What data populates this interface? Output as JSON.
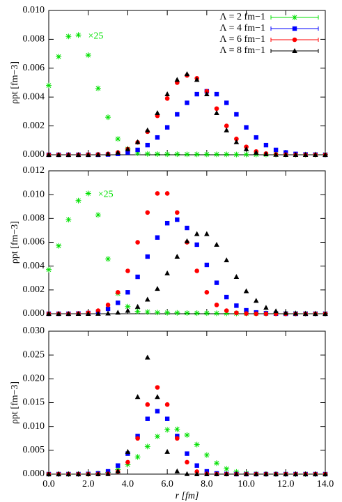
{
  "chart_data": [
    {
      "type": "scatter",
      "x": [
        0,
        0.5,
        1,
        1.5,
        2,
        2.5,
        3,
        3.5,
        4,
        4.5,
        5,
        5.5,
        6,
        6.5,
        7,
        7.5,
        8,
        8.5,
        9,
        9.5,
        10,
        10.5,
        11,
        11.5,
        12,
        12.5,
        13,
        13.5,
        14
      ],
      "ylabel": "ρpt [fm−3]",
      "ylim": [
        0,
        0.01
      ],
      "yticks": [
        {
          "value": 0,
          "label": "0.000"
        },
        {
          "value": 0.002,
          "label": "0.002"
        },
        {
          "value": 0.004,
          "label": "0.004"
        },
        {
          "value": 0.006,
          "label": "0.006"
        },
        {
          "value": 0.008,
          "label": "0.008"
        },
        {
          "value": 0.01,
          "label": "0.010"
        }
      ],
      "legend": "upper right",
      "annotation": "×25",
      "series": [
        {
          "name": "Λ = 2 fm−1",
          "color": "#00e000",
          "marker": "asterisk",
          "values": [
            0.0048,
            0.0068,
            0.0082,
            0.0083,
            0.0069,
            0.0046,
            0.0026,
            0.0011,
            0.0004,
            0.00012,
            6e-05,
            5e-05,
            4e-05,
            4e-05,
            3e-05,
            3e-05,
            3e-05,
            3e-05,
            3e-05,
            2e-05,
            2e-05,
            2e-05,
            2e-05,
            2e-05,
            1e-05,
            1e-05,
            1e-05,
            1e-05,
            1e-05
          ]
        },
        {
          "name": "Λ = 4 fm−1",
          "color": "#0000ff",
          "marker": "square",
          "values": [
            0,
            0,
            0,
            0,
            0,
            0,
            2e-05,
            6e-05,
            0.00016,
            0.00034,
            0.00067,
            0.0012,
            0.0019,
            0.0028,
            0.0036,
            0.0042,
            0.0044,
            0.0042,
            0.0036,
            0.0028,
            0.0019,
            0.0012,
            0.00067,
            0.00034,
            0.00016,
            6e-05,
            2e-05,
            1e-05,
            0
          ]
        },
        {
          "name": "Λ = 6 fm−1",
          "color": "#ff0000",
          "marker": "circle",
          "values": [
            0,
            0,
            0,
            0,
            1e-05,
            2e-05,
            5.5e-05,
            0.00016,
            0.00039,
            0.00086,
            0.0016,
            0.0027,
            0.0039,
            0.005,
            0.0055,
            0.0053,
            0.0044,
            0.0032,
            0.002,
            0.0011,
            0.00055,
            0.00023,
            8.5e-05,
            3e-05,
            1e-05,
            0,
            0,
            0,
            0
          ]
        },
        {
          "name": "Λ = 8 fm−1",
          "color": "#000000",
          "marker": "triangle",
          "values": [
            0,
            0,
            0,
            0,
            0,
            1e-05,
            5e-05,
            0.00015,
            0.00039,
            0.00088,
            0.0017,
            0.0029,
            0.0042,
            0.0052,
            0.0056,
            0.0052,
            0.0042,
            0.0029,
            0.0017,
            0.00088,
            0.00039,
            0.00015,
            5e-05,
            1e-05,
            0,
            0,
            0,
            0,
            0
          ]
        }
      ]
    },
    {
      "type": "scatter",
      "x": [
        0,
        0.5,
        1,
        1.5,
        2,
        2.5,
        3,
        3.5,
        4,
        4.5,
        5,
        5.5,
        6,
        6.5,
        7,
        7.5,
        8,
        8.5,
        9,
        9.5,
        10,
        10.5,
        11,
        11.5,
        12,
        12.5,
        13,
        13.5,
        14
      ],
      "ylabel": "ρpt [fm−3]",
      "ylim": [
        0,
        0.012
      ],
      "yticks": [
        {
          "value": 0,
          "label": "0.000"
        },
        {
          "value": 0.002,
          "label": "0.002"
        },
        {
          "value": 0.004,
          "label": "0.004"
        },
        {
          "value": 0.006,
          "label": "0.006"
        },
        {
          "value": 0.008,
          "label": "0.008"
        },
        {
          "value": 0.01,
          "label": "0.010"
        },
        {
          "value": 0.012,
          "label": "0.012"
        }
      ],
      "annotation": "×25",
      "series": [
        {
          "color": "#00e000",
          "marker": "asterisk",
          "values": [
            0.0037,
            0.0057,
            0.0079,
            0.0095,
            0.0101,
            0.0083,
            0.0046,
            0.0017,
            0.0006,
            0.0002,
            0.00015,
            0.0001,
            8e-05,
            7e-05,
            6e-05,
            5e-05,
            5e-05,
            4e-05,
            4e-05,
            3e-05,
            3e-05,
            3e-05,
            2e-05,
            2e-05,
            2e-05,
            2e-05,
            1e-05,
            1e-05,
            1e-05
          ]
        },
        {
          "color": "#0000ff",
          "marker": "square",
          "values": [
            0,
            0,
            0,
            2e-05,
            6e-05,
            0.00016,
            0.00041,
            0.00092,
            0.0018,
            0.0031,
            0.0048,
            0.0064,
            0.0076,
            0.0079,
            0.0072,
            0.0058,
            0.0041,
            0.0026,
            0.0014,
            0.00068,
            0.00029,
            0.00011,
            4e-05,
            1e-05,
            0,
            0,
            0,
            0,
            0
          ]
        },
        {
          "color": "#ff0000",
          "marker": "circle",
          "values": [
            0,
            0,
            0,
            2e-05,
            8e-05,
            0.00026,
            0.00074,
            0.0018,
            0.0036,
            0.006,
            0.0085,
            0.0101,
            0.0101,
            0.0085,
            0.006,
            0.0036,
            0.0018,
            0.00074,
            0.00026,
            8e-05,
            2e-05,
            0,
            0,
            0,
            0,
            0,
            0,
            0,
            0
          ]
        },
        {
          "color": "#000000",
          "marker": "triangle",
          "values": [
            0,
            0,
            0,
            0,
            0,
            1e-05,
            3e-05,
            0.0001,
            0.00026,
            0.00059,
            0.0012,
            0.0021,
            0.0034,
            0.0048,
            0.0061,
            0.0067,
            0.0067,
            0.0058,
            0.0045,
            0.0031,
            0.0019,
            0.0011,
            0.00051,
            0.00022,
            8e-05,
            3e-05,
            1e-05,
            0,
            0
          ]
        }
      ]
    },
    {
      "type": "scatter",
      "x": [
        0,
        0.5,
        1,
        1.5,
        2,
        2.5,
        3,
        3.5,
        4,
        4.5,
        5,
        5.5,
        6,
        6.5,
        7,
        7.5,
        8,
        8.5,
        9,
        9.5,
        10,
        10.5,
        11,
        11.5,
        12,
        12.5,
        13,
        13.5,
        14
      ],
      "xlabel": "r [fm]",
      "ylabel": "ρpt [fm−3]",
      "xlim": [
        0,
        14
      ],
      "xticks": [
        {
          "value": 0,
          "label": "0.0"
        },
        {
          "value": 2,
          "label": "2.0"
        },
        {
          "value": 4,
          "label": "4.0"
        },
        {
          "value": 6,
          "label": "6.0"
        },
        {
          "value": 8,
          "label": "8.0"
        },
        {
          "value": 10,
          "label": "10.0"
        },
        {
          "value": 12,
          "label": "12.0"
        },
        {
          "value": 14,
          "label": "14.0"
        }
      ],
      "ylim": [
        0,
        0.03
      ],
      "yticks": [
        {
          "value": 0,
          "label": "0.000"
        },
        {
          "value": 0.005,
          "label": "0.005"
        },
        {
          "value": 0.01,
          "label": "0.010"
        },
        {
          "value": 0.015,
          "label": "0.015"
        },
        {
          "value": 0.02,
          "label": "0.020"
        },
        {
          "value": 0.025,
          "label": "0.025"
        },
        {
          "value": 0.03,
          "label": "0.030"
        }
      ],
      "series": [
        {
          "color": "#00e000",
          "marker": "asterisk",
          "values": [
            0,
            0,
            0,
            1e-05,
            3e-05,
            0.00013,
            0.00038,
            0.00093,
            0.002,
            0.0036,
            0.0058,
            0.0079,
            0.0093,
            0.0094,
            0.0082,
            0.0062,
            0.004,
            0.0023,
            0.0011,
            0.00046,
            0.00017,
            5e-05,
            2e-05,
            0,
            0,
            0,
            0,
            0,
            0
          ]
        },
        {
          "color": "#0000ff",
          "marker": "square",
          "values": [
            0,
            0,
            0,
            0,
            3e-05,
            0.00015,
            0.00058,
            0.0018,
            0.0043,
            0.008,
            0.0116,
            0.0132,
            0.0116,
            0.008,
            0.0043,
            0.0018,
            0.00058,
            0.00015,
            3e-05,
            0,
            0,
            0,
            0,
            0,
            0,
            0,
            0,
            0,
            0
          ]
        },
        {
          "color": "#ff0000",
          "marker": "circle",
          "values": [
            0,
            0,
            0,
            0,
            0,
            1e-05,
            7e-05,
            0.00052,
            0.0025,
            0.0075,
            0.0146,
            0.0182,
            0.0146,
            0.0075,
            0.0025,
            0.00052,
            7e-05,
            1e-05,
            0,
            0,
            0,
            0,
            0,
            0,
            0,
            0,
            0,
            0,
            0
          ]
        },
        {
          "color": "#000000",
          "marker": "triangle",
          "values": [
            0,
            0,
            0,
            0,
            0,
            0,
            3e-05,
            0.0006,
            0.0047,
            0.0162,
            0.0245,
            0.0162,
            0.0047,
            0.0006,
            3e-05,
            0,
            0,
            0,
            0,
            0,
            0,
            0,
            0,
            0,
            0,
            0,
            0,
            0,
            0
          ]
        }
      ]
    }
  ]
}
